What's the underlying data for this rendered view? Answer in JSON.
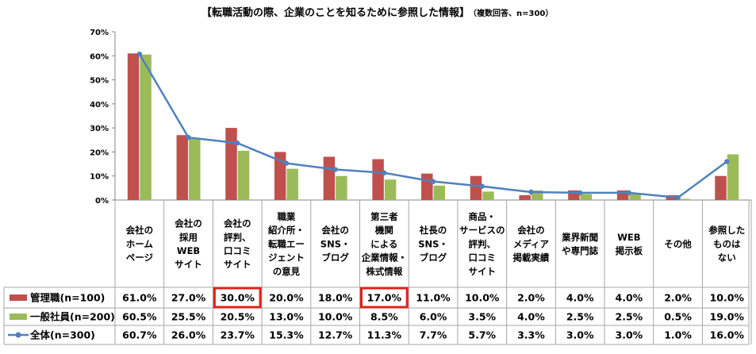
{
  "chart_data": {
    "type": "bar",
    "title": "【転職活動の際、企業のことを知るために参照した情報】",
    "subtitle": "（複数回答、n=300）",
    "ylim": [
      0,
      70
    ],
    "yticks": [
      "0%",
      "10%",
      "20%",
      "30%",
      "40%",
      "50%",
      "60%",
      "70%"
    ],
    "categories": [
      [
        "会社の",
        "ホーム",
        "ページ"
      ],
      [
        "会社の",
        "採用",
        "WEB",
        "サイト"
      ],
      [
        "会社の",
        "評判、",
        "口コミ",
        "サイト"
      ],
      [
        "職業",
        "紹介所・",
        "転職エー",
        "ジェント",
        "の意見"
      ],
      [
        "会社の",
        "SNS・",
        "ブログ"
      ],
      [
        "第三者",
        "機関",
        "による",
        "企業情報・",
        "株式情報"
      ],
      [
        "社長の",
        "SNS・",
        "ブログ"
      ],
      [
        "商品・",
        "サービスの",
        "評判、",
        "口コミ",
        "サイト"
      ],
      [
        "会社の",
        "メディア",
        "掲載実績"
      ],
      [
        "業界新聞",
        "や専門誌"
      ],
      [
        "WEB",
        "掲示板"
      ],
      [
        "その他"
      ],
      [
        "参照した",
        "ものは",
        "ない"
      ]
    ],
    "series": [
      {
        "name": "管理職(n=100)",
        "type": "bar",
        "color": "#c0504d",
        "values": [
          61.0,
          27.0,
          30.0,
          20.0,
          18.0,
          17.0,
          11.0,
          10.0,
          2.0,
          4.0,
          4.0,
          2.0,
          10.0
        ],
        "labels": [
          "61.0%",
          "27.0%",
          "30.0%",
          "20.0%",
          "18.0%",
          "17.0%",
          "11.0%",
          "10.0%",
          "2.0%",
          "4.0%",
          "4.0%",
          "2.0%",
          "10.0%"
        ]
      },
      {
        "name": "一般社員(n=200)",
        "type": "bar",
        "color": "#9bbb59",
        "values": [
          60.5,
          25.5,
          20.5,
          13.0,
          10.0,
          8.5,
          6.0,
          3.5,
          4.0,
          2.5,
          2.5,
          0.5,
          19.0
        ],
        "labels": [
          "60.5%",
          "25.5%",
          "20.5%",
          "13.0%",
          "10.0%",
          "8.5%",
          "6.0%",
          "3.5%",
          "4.0%",
          "2.5%",
          "2.5%",
          "0.5%",
          "19.0%"
        ]
      },
      {
        "name": "全体(n=300)",
        "type": "line",
        "color": "#4f81bd",
        "values": [
          60.7,
          26.0,
          23.7,
          15.3,
          12.7,
          11.3,
          7.7,
          5.7,
          3.3,
          3.0,
          3.0,
          1.0,
          16.0
        ],
        "labels": [
          "60.7%",
          "26.0%",
          "23.7%",
          "15.3%",
          "12.7%",
          "11.3%",
          "7.7%",
          "5.7%",
          "3.3%",
          "3.0%",
          "3.0%",
          "1.0%",
          "16.0%"
        ]
      }
    ],
    "highlighted_cells": [
      {
        "series": 0,
        "category": 2
      },
      {
        "series": 0,
        "category": 5
      }
    ],
    "highlight_color": "#e0201a",
    "grid": false,
    "legend": "table-below"
  }
}
